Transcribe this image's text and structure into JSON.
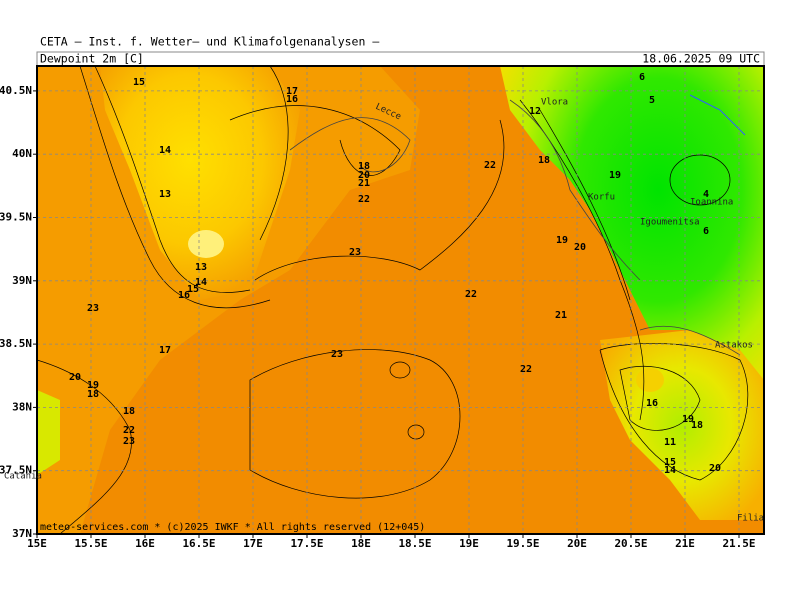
{
  "header": {
    "title": "CETA — Inst. f. Wetter— und Klimafolgenanalysen —",
    "parameter": "Dewpoint_2m_[C]",
    "valid_time": "18.06.2025 09 UTC"
  },
  "footer": "meteo-services.com * (c)2025 IWKF * All rights reserved (12+045)",
  "map": {
    "lon_ticks": [
      {
        "value": 15,
        "label": "15E"
      },
      {
        "value": 15.5,
        "label": "15.5E"
      },
      {
        "value": 16,
        "label": "16E"
      },
      {
        "value": 16.5,
        "label": "16.5E"
      },
      {
        "value": 17,
        "label": "17E"
      },
      {
        "value": 17.5,
        "label": "17.5E"
      },
      {
        "value": 18,
        "label": "18E"
      },
      {
        "value": 18.5,
        "label": "18.5E"
      },
      {
        "value": 19,
        "label": "19E"
      },
      {
        "value": 19.5,
        "label": "19.5E"
      },
      {
        "value": 20,
        "label": "20E"
      },
      {
        "value": 20.5,
        "label": "20.5E"
      },
      {
        "value": 21,
        "label": "21E"
      },
      {
        "value": 21.5,
        "label": "21.5E"
      }
    ],
    "lat_ticks": [
      {
        "value": 37,
        "label": "37N"
      },
      {
        "value": 37.5,
        "label": "37.5N"
      },
      {
        "value": 38,
        "label": "38N"
      },
      {
        "value": 38.5,
        "label": "38.5N"
      },
      {
        "value": 39,
        "label": "39N"
      },
      {
        "value": 39.5,
        "label": "39.5N"
      },
      {
        "value": 40,
        "label": "40N"
      },
      {
        "value": 40.5,
        "label": "40.5N"
      }
    ],
    "contour_labels": [
      "15",
      "17",
      "16",
      "14",
      "13",
      "18",
      "20",
      "21",
      "22",
      "13",
      "14",
      "15",
      "16",
      "23",
      "22",
      "12",
      "18",
      "19",
      "4",
      "6",
      "5",
      "6",
      "19",
      "20",
      "22",
      "21",
      "23",
      "17",
      "23",
      "22",
      "20",
      "19",
      "18",
      "18",
      "22",
      "23",
      "16",
      "19",
      "18",
      "11",
      "15",
      "14",
      "20"
    ],
    "places": [
      "Vlora",
      "Lecce",
      "Korfu",
      "Igoumenitsa",
      "Ioannina",
      "Astakos",
      "Catania",
      "Filiatra"
    ]
  }
}
